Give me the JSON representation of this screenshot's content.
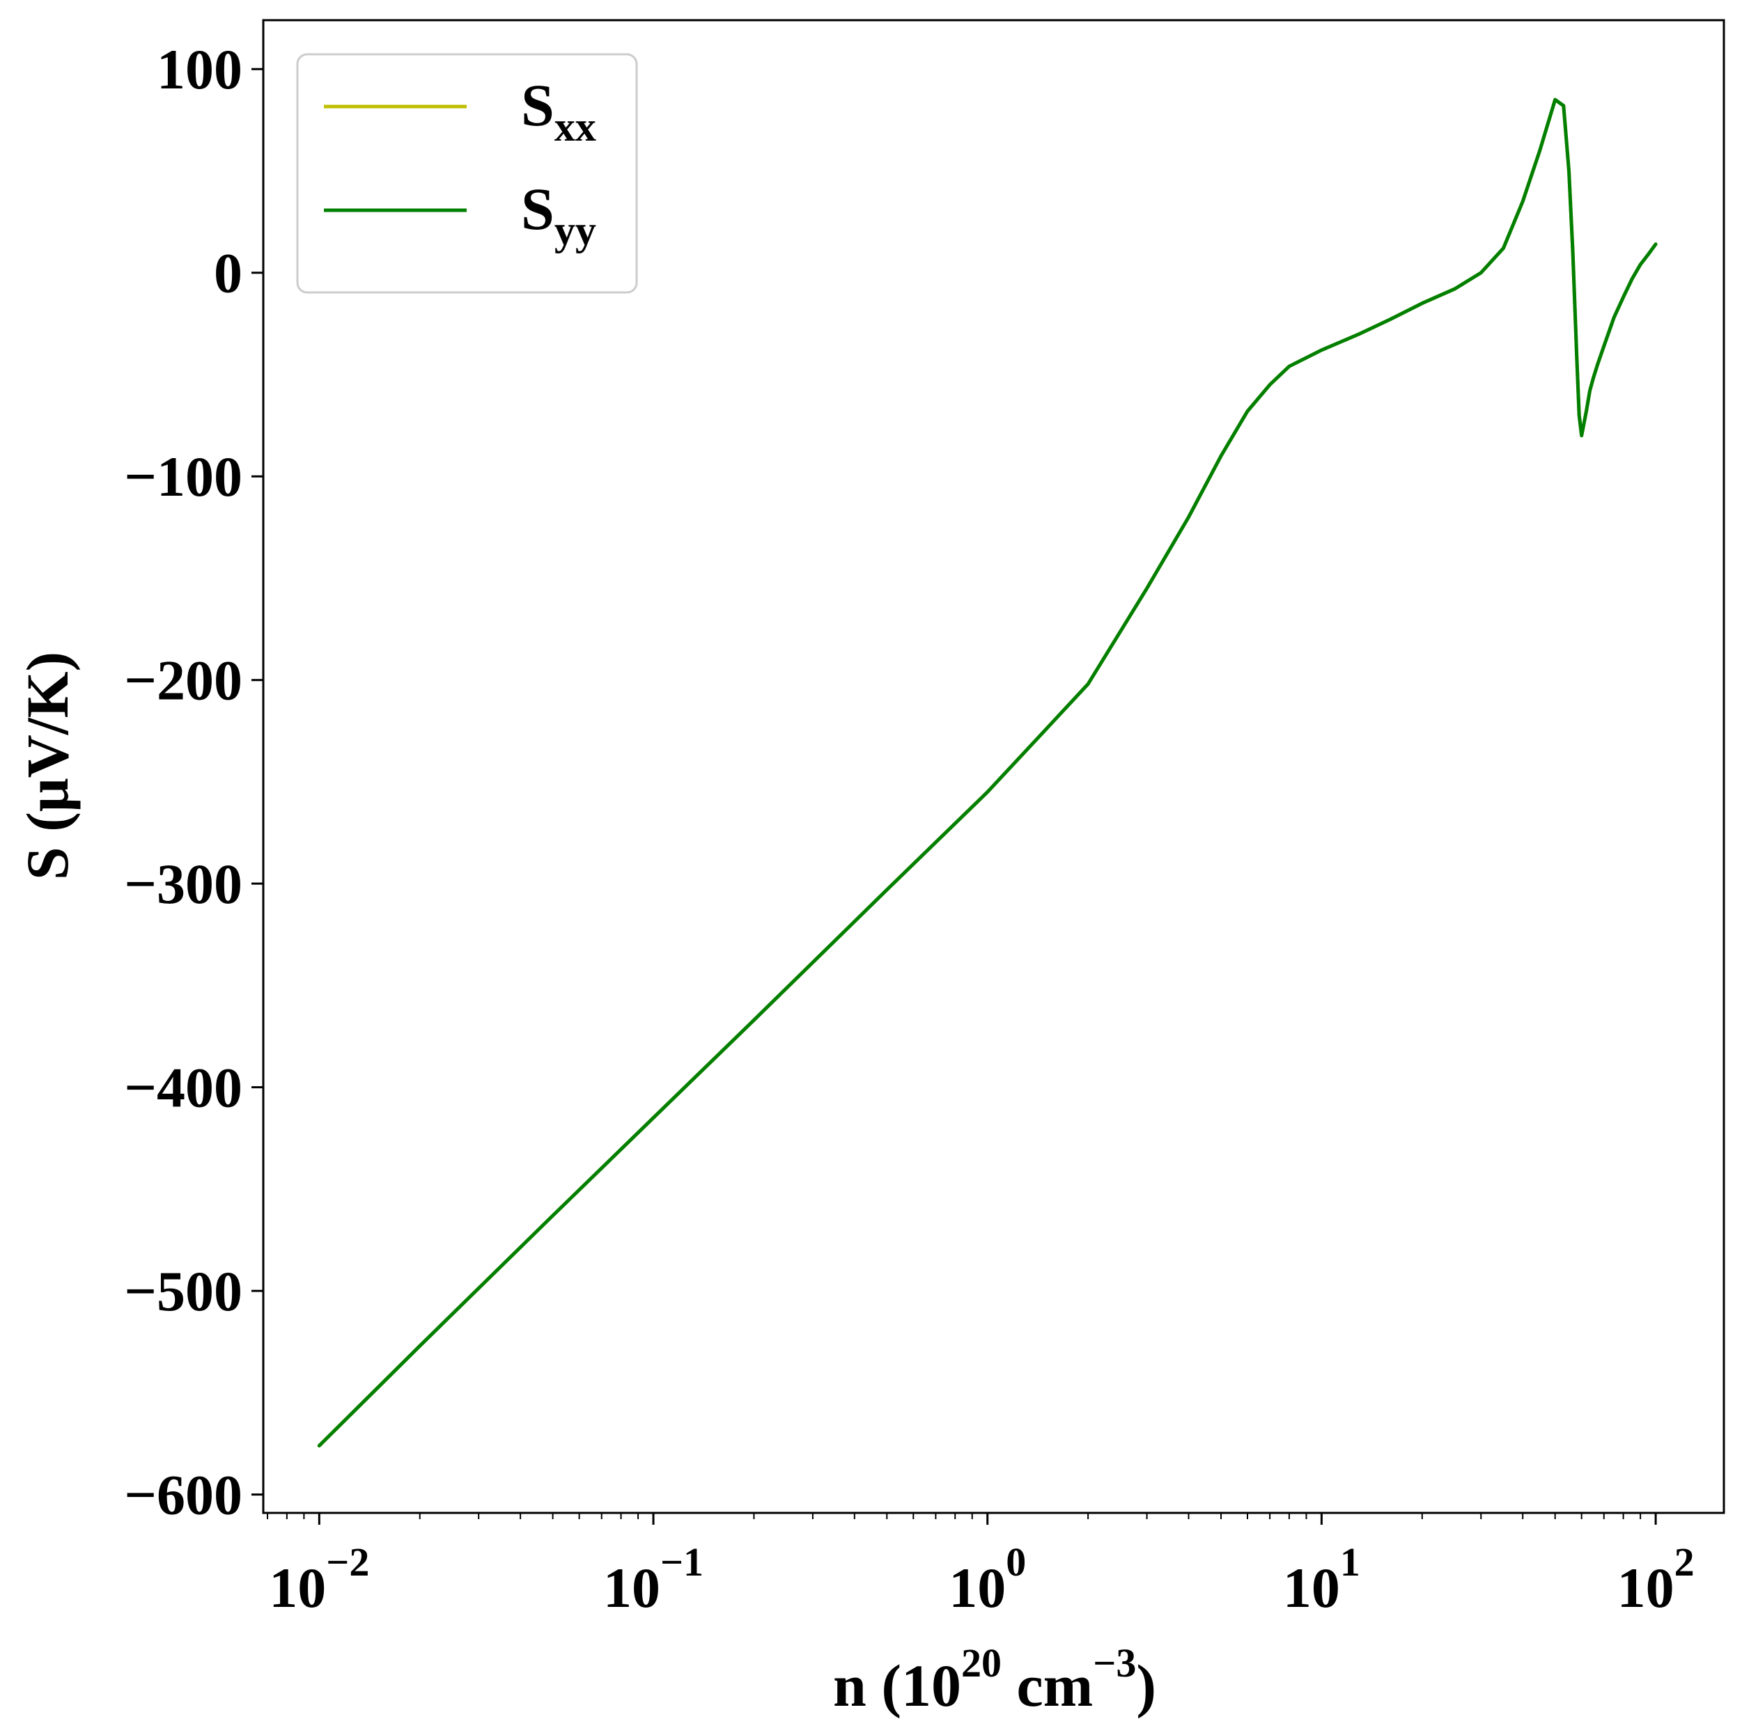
{
  "chart_data": {
    "type": "line",
    "x_scale": "log",
    "xlabel": "n (10^20 cm^-3)",
    "xlabel_parts": {
      "prefix": "n (10",
      "exp1": "20",
      "mid": " cm",
      "exp2": "−3",
      "suffix": ")"
    },
    "ylabel": "S (μV/K)",
    "xlim": [
      0.0068,
      160
    ],
    "ylim": [
      -609,
      124
    ],
    "x_ticks": [
      {
        "base": "10",
        "exp": "−2",
        "value": 0.01
      },
      {
        "base": "10",
        "exp": "−1",
        "value": 0.1
      },
      {
        "base": "10",
        "exp": "0",
        "value": 1
      },
      {
        "base": "10",
        "exp": "1",
        "value": 10
      },
      {
        "base": "10",
        "exp": "2",
        "value": 100
      }
    ],
    "y_ticks": [
      {
        "label": "100",
        "value": 100
      },
      {
        "label": "0",
        "value": 0
      },
      {
        "label": "−100",
        "value": -100
      },
      {
        "label": "−200",
        "value": -200
      },
      {
        "label": "−300",
        "value": -300
      },
      {
        "label": "−400",
        "value": -400
      },
      {
        "label": "−500",
        "value": -500
      },
      {
        "label": "−600",
        "value": -600
      }
    ],
    "grid": false,
    "legend_position": "top-left",
    "legend": [
      {
        "base": "S",
        "sub": "xx",
        "color": "#bfbf00"
      },
      {
        "base": "S",
        "sub": "yy",
        "color": "#007f00"
      }
    ],
    "x": [
      0.01,
      0.02,
      0.05,
      0.1,
      0.2,
      0.5,
      1.0,
      1.5,
      2.0,
      3.0,
      4.0,
      5.0,
      6.0,
      7.0,
      8.0,
      10.0,
      13.0,
      16.0,
      20.0,
      25.0,
      30.0,
      35.0,
      40.0,
      45.0,
      50.0,
      53.0,
      55.0,
      56.5,
      58.0,
      59.0,
      60.0,
      62.0,
      63.5,
      65.0,
      67.0,
      70.0,
      75.0,
      80.0,
      85.0,
      90.0,
      95.0,
      100.0
    ],
    "series": [
      {
        "name": "S_xx",
        "values": [
          -576,
          -527,
          -463,
          -415,
          -367,
          -303,
          -255,
          -224,
          -202,
          -155,
          -120,
          -90,
          -68,
          -55,
          -46,
          -38,
          -30,
          -23,
          -15,
          -8,
          0,
          12,
          35,
          60,
          85,
          82,
          50,
          10,
          -40,
          -70,
          -80,
          -68,
          -58,
          -52,
          -45,
          -36,
          -22,
          -12,
          -3,
          4,
          9,
          14
        ]
      },
      {
        "name": "S_yy",
        "values": [
          -576,
          -527,
          -463,
          -415,
          -367,
          -303,
          -255,
          -224,
          -202,
          -155,
          -120,
          -90,
          -68,
          -55,
          -46,
          -38,
          -30,
          -23,
          -15,
          -8,
          0,
          12,
          35,
          60,
          85,
          82,
          50,
          10,
          -40,
          -70,
          -80,
          -68,
          -58,
          -52,
          -45,
          -36,
          -22,
          -12,
          -3,
          4,
          9,
          14
        ]
      }
    ]
  }
}
